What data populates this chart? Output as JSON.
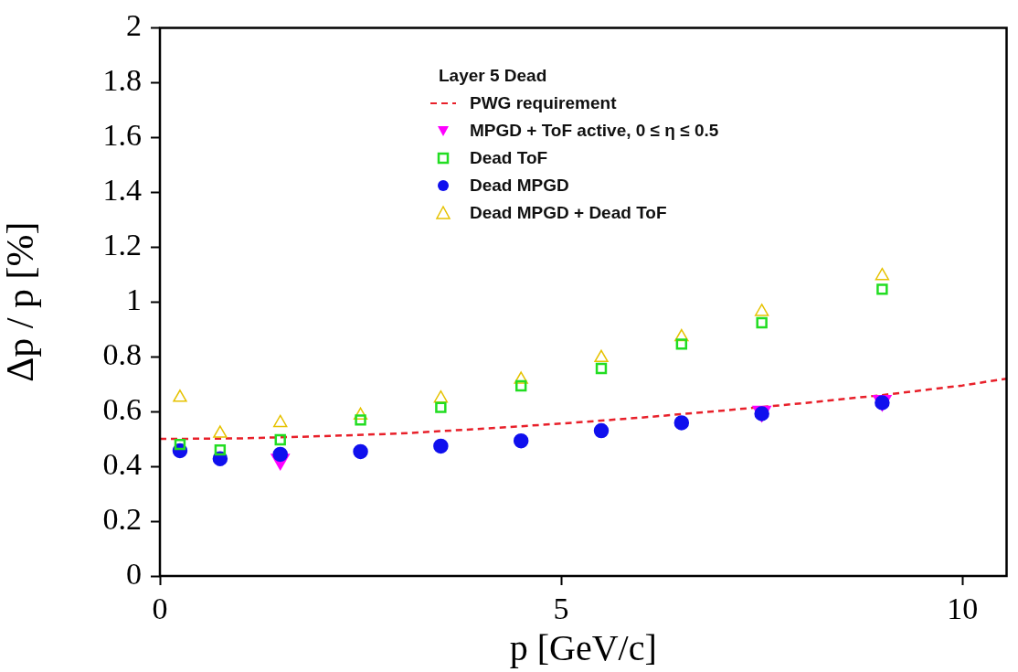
{
  "chart_data": {
    "type": "scatter",
    "xlabel": "p [GeV/c]",
    "ylabel": "Δp / p [%]",
    "legend_title": "Layer 5 Dead",
    "legend": "top",
    "grid": false,
    "xlim": [
      0,
      10.55
    ],
    "xticks": [
      0,
      5,
      10
    ],
    "ylim": [
      0,
      2
    ],
    "yticks": [
      0,
      0.2,
      0.4,
      0.6,
      0.8,
      1,
      1.2,
      1.4,
      1.6,
      1.8,
      2
    ],
    "x": [
      0.25,
      0.75,
      1.5,
      2.5,
      3.5,
      4.5,
      5.5,
      6.5,
      7.5,
      9
    ],
    "series": [
      {
        "name": "PWG requirement",
        "type": "line",
        "line_style": "dashed",
        "marker": "none",
        "color": "#e8202a",
        "x": [
          0,
          1,
          2,
          3,
          4,
          5,
          6,
          7,
          8,
          9,
          10,
          10.55
        ],
        "values": [
          0.5,
          0.502,
          0.51,
          0.52,
          0.537,
          0.556,
          0.578,
          0.603,
          0.63,
          0.66,
          0.695,
          0.72
        ]
      },
      {
        "name": "MPGD + ToF active, 0 ≤ η ≤ 0.5",
        "marker": "triangle-down",
        "color": "#ff00ff",
        "values": [
          null,
          null,
          0.425,
          null,
          null,
          null,
          null,
          null,
          0.6,
          0.64
        ]
      },
      {
        "name": "Dead ToF",
        "marker": "square",
        "color": "#22dd22",
        "values": [
          0.48,
          0.46,
          0.497,
          0.569,
          0.615,
          0.694,
          0.757,
          0.846,
          0.924,
          1.046
        ]
      },
      {
        "name": "Dead MPGD",
        "marker": "circle",
        "color": "#1010ee",
        "values": [
          0.457,
          0.428,
          0.444,
          0.454,
          0.474,
          0.493,
          0.53,
          0.559,
          0.592,
          0.632
        ]
      },
      {
        "name": "Dead MPGD + Dead ToF",
        "marker": "triangle",
        "color": "#e6c200",
        "values": [
          0.651,
          0.52,
          0.559,
          0.586,
          0.648,
          0.717,
          0.796,
          0.872,
          0.964,
          1.095
        ]
      }
    ]
  }
}
